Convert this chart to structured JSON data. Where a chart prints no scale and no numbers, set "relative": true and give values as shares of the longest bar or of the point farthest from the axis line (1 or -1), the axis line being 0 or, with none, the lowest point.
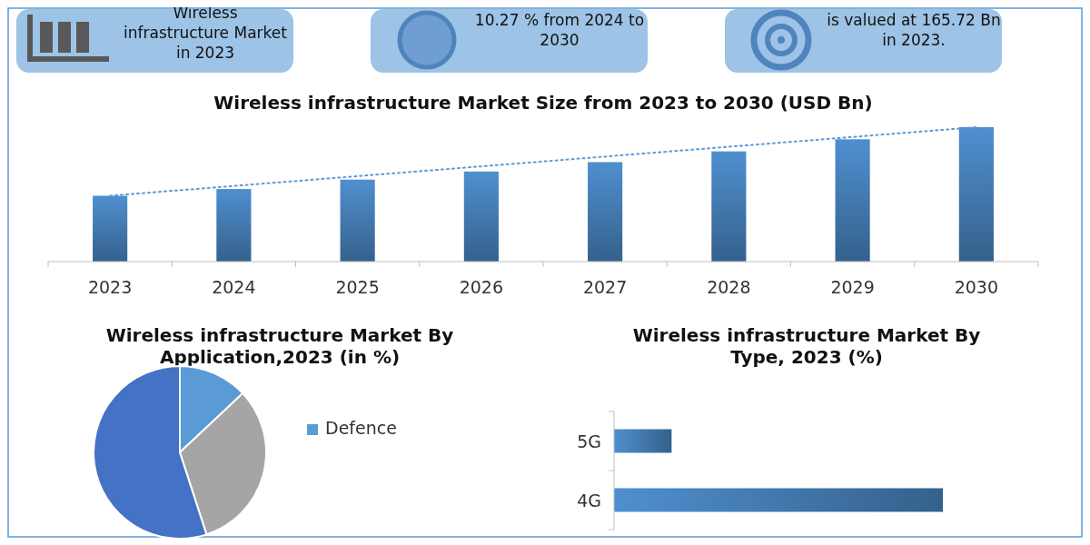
{
  "chart_data": [
    {
      "type": "other",
      "annotations": [
        "Wireless infrastructure Market in 2023",
        "10.27 % from 2024 to 2030",
        "is valued at 165.72 Bn in 2023."
      ]
    },
    {
      "type": "bar",
      "title": "Wireless infrastructure Market Size from 2023 to 2030 (USD Bn)",
      "relative": true,
      "categories": [
        "2023",
        "2024",
        "2025",
        "2026",
        "2027",
        "2028",
        "2029",
        "2030"
      ],
      "series": [
        {
          "type": "bar",
          "color": "#4f8fcf",
          "values": [
            0.49,
            0.54,
            0.61,
            0.67,
            0.74,
            0.82,
            0.91,
            1
          ]
        },
        {
          "type": "line",
          "line_style": "dotted",
          "color": "#5b9bd5",
          "values": [
            0.49,
            null,
            null,
            null,
            null,
            null,
            null,
            1
          ]
        }
      ]
    },
    {
      "type": "pie",
      "title": "Wireless infrastructure Market By Application,2023 (in %)",
      "categories": [
        "Defence",
        null,
        null
      ],
      "values": [
        13,
        32,
        55
      ],
      "colors": [
        "#5b9bd5",
        "#a5a5a5",
        "#4472c4"
      ],
      "legend": "right"
    },
    {
      "type": "bar",
      "orientation": "horizontal",
      "title": "Wireless infrastructure Market By Type, 2023 (%)",
      "relative": true,
      "categories": [
        "5G",
        "4G"
      ],
      "values": [
        0.175,
        1
      ],
      "color": "#4f8fcf"
    }
  ]
}
